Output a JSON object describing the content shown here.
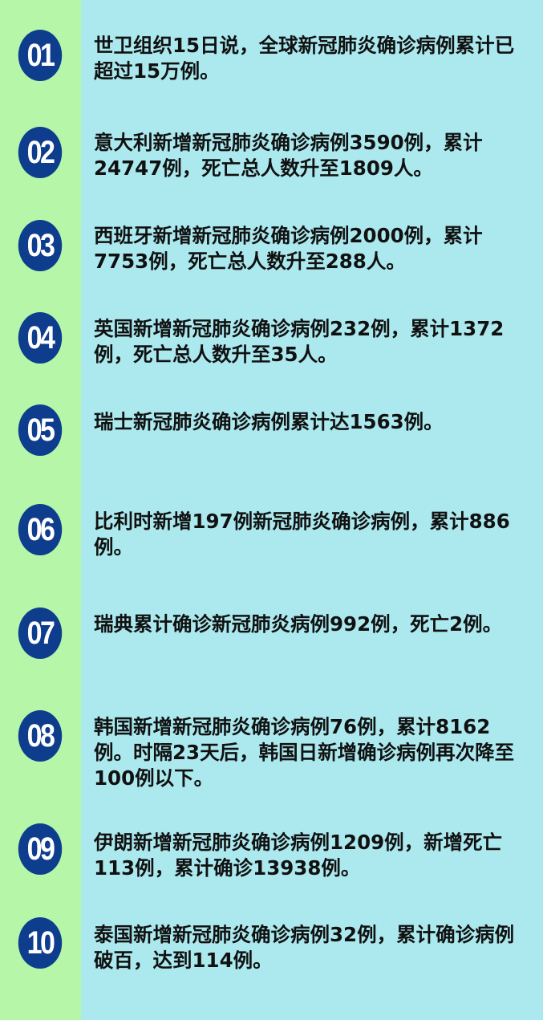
{
  "colors": {
    "left_strip": "#b5f6a9",
    "background": "#abe9ef",
    "badge": "#0e3d8e"
  },
  "items": [
    {
      "number": "01",
      "text": "世卫组织15日说，全球新冠肺炎确诊病例累计已超过15万例。"
    },
    {
      "number": "02",
      "text": "意大利新增新冠肺炎确诊病例3590例，累计24747例，死亡总人数升至1809人。"
    },
    {
      "number": "03",
      "text": "西班牙新增新冠肺炎确诊病例2000例，累计7753例，死亡总人数升至288人。"
    },
    {
      "number": "04",
      "text": "英国新增新冠肺炎确诊病例232例，累计1372例，死亡总人数升至35人。"
    },
    {
      "number": "05",
      "text": "瑞士新冠肺炎确诊病例累计达1563例。"
    },
    {
      "number": "06",
      "text": "比利时新增197例新冠肺炎确诊病例，累计886例。"
    },
    {
      "number": "07",
      "text": "瑞典累计确诊新冠肺炎病例992例，死亡2例。"
    },
    {
      "number": "08",
      "text": "韩国新增新冠肺炎确诊病例76例，累计8162例。时隔23天后，韩国日新增确诊病例再次降至100例以下。"
    },
    {
      "number": "09",
      "text": "伊朗新增新冠肺炎确诊病例1209例，新增死亡113例，累计确诊13938例。"
    },
    {
      "number": "10",
      "text": "泰国新增新冠肺炎确诊病例32例，累计确诊病例破百，达到114例。"
    }
  ]
}
